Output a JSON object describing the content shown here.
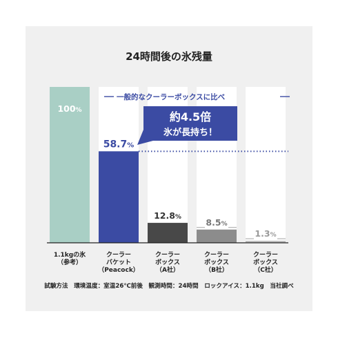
{
  "title": "24時間後の氷残量",
  "chart_data": {
    "type": "bar",
    "categories": [
      [
        "1.1kgの氷",
        "（参考）"
      ],
      [
        "クーラー",
        "バケット",
        "（Peacock）"
      ],
      [
        "クーラー",
        "ボックス",
        "（A社）"
      ],
      [
        "クーラー",
        "ボックス",
        "（B社）"
      ],
      [
        "クーラー",
        "ボックス",
        "（C社）"
      ]
    ],
    "values": [
      100,
      58.7,
      12.8,
      8.5,
      1.3
    ],
    "value_labels": [
      {
        "num": "100",
        "unit": "%"
      },
      {
        "num": "58.7",
        "unit": "%"
      },
      {
        "num": "12.8",
        "unit": "%"
      },
      {
        "num": "8.5",
        "unit": "%"
      },
      {
        "num": "1.3",
        "unit": "%"
      }
    ],
    "ylim": [
      0,
      100
    ],
    "colors": [
      "#a9cfc5",
      "#3b4ba3",
      "#484848",
      "#8c8c8c",
      "#bdbdbd"
    ],
    "label_colors": [
      "#ffffff",
      "#3b4ba3",
      "#333333",
      "#777777",
      "#9a9a9a"
    ],
    "legend_text": "一般的なクーラーボックスに比べ",
    "callout": {
      "line1": "約4.5倍",
      "line2": "氷が長持ち！"
    },
    "accent_color": "#3b4ba3"
  },
  "footnote": "試験方法　環境温度：室温26℃前後　観測時間：24時間　ロックアイス：1.1kg　当社調べ"
}
